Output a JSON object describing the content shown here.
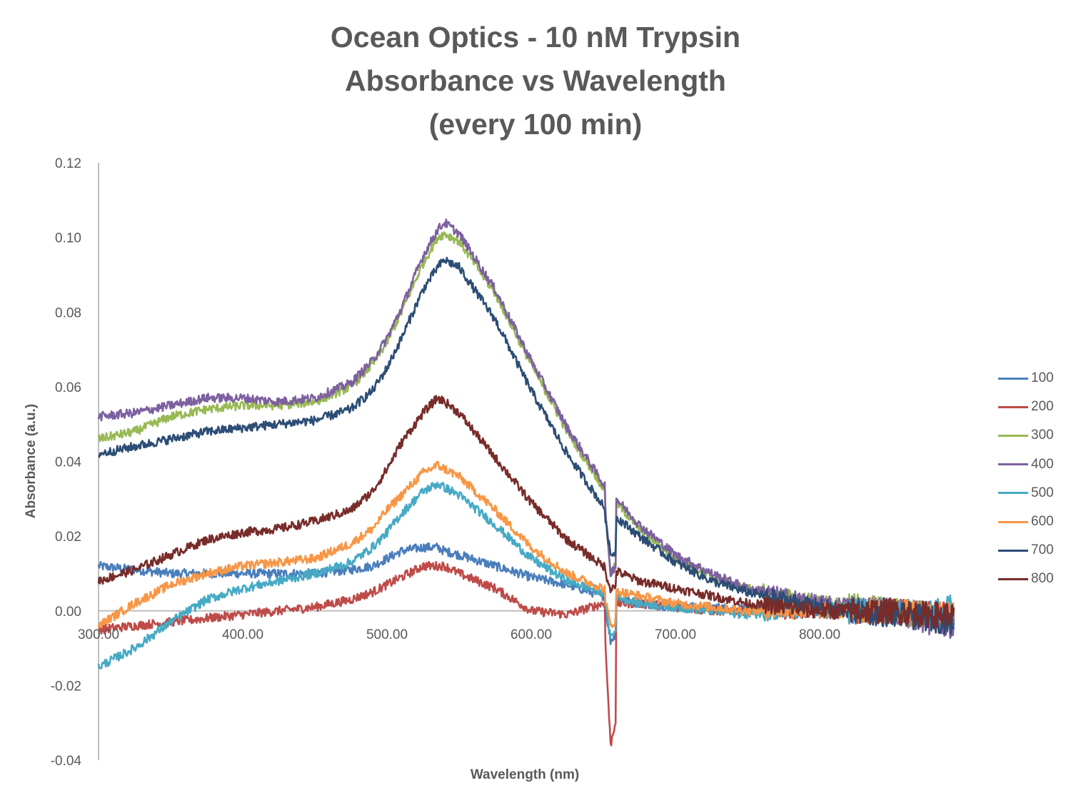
{
  "chart_data": {
    "type": "line",
    "title_lines": [
      "Ocean Optics - 10 nM Trypsin",
      "Absorbance vs Wavelength",
      "(every 100 min)"
    ],
    "xlabel": "Wavelength (nm)",
    "ylabel": "Absorbance (a.u.)",
    "xlim": [
      300,
      893
    ],
    "ylim": [
      -0.04,
      0.12
    ],
    "x_ticks": [
      300,
      400,
      500,
      600,
      700,
      800
    ],
    "x_tick_labels": [
      "300.00",
      "400.00",
      "500.00",
      "600.00",
      "700.00",
      "800.00"
    ],
    "y_ticks": [
      0.12,
      0.1,
      0.08,
      0.06,
      0.04,
      0.02,
      0.0,
      -0.02,
      -0.04
    ],
    "y_tick_labels": [
      "0.12",
      "0.10",
      "0.08",
      "0.06",
      "0.04",
      "0.02",
      "0.00",
      "-0.02",
      "-0.04"
    ],
    "grid": false,
    "legend_position": "right",
    "x": [
      300,
      325,
      350,
      375,
      400,
      425,
      450,
      475,
      490,
      500,
      510,
      525,
      535,
      540,
      550,
      575,
      600,
      625,
      650,
      655,
      675,
      700,
      725,
      750,
      775,
      800,
      825,
      850,
      875,
      893
    ],
    "series": [
      {
        "name": "100",
        "color": "#4a7ebb",
        "values": [
          0.012,
          0.011,
          0.01,
          0.01,
          0.01,
          0.01,
          0.01,
          0.011,
          0.012,
          0.014,
          0.016,
          0.017,
          0.017,
          0.016,
          0.015,
          0.012,
          0.009,
          0.007,
          0.004,
          -0.008,
          0.002,
          0.001,
          0.001,
          0.0005,
          0.0005,
          0.0,
          0.0,
          0.0,
          -0.001,
          -0.001
        ]
      },
      {
        "name": "200",
        "color": "#be4b48",
        "values": [
          -0.005,
          -0.004,
          -0.003,
          -0.002,
          -0.001,
          0.0,
          0.001,
          0.003,
          0.005,
          0.007,
          0.009,
          0.012,
          0.012,
          0.012,
          0.01,
          0.006,
          0.0,
          -0.001,
          0.002,
          -0.036,
          0.002,
          0.001,
          0.0,
          0.0,
          0.0,
          0.0,
          0.0,
          0.0,
          -0.001,
          -0.001
        ]
      },
      {
        "name": "300",
        "color": "#98b954",
        "values": [
          0.046,
          0.048,
          0.052,
          0.054,
          0.055,
          0.055,
          0.056,
          0.06,
          0.066,
          0.072,
          0.08,
          0.093,
          0.1,
          0.101,
          0.099,
          0.085,
          0.066,
          0.048,
          0.033,
          0.01,
          0.022,
          0.014,
          0.009,
          0.006,
          0.004,
          0.002,
          0.001,
          0.0,
          -0.002,
          -0.003
        ]
      },
      {
        "name": "400",
        "color": "#7d60a0",
        "values": [
          0.052,
          0.053,
          0.055,
          0.057,
          0.057,
          0.056,
          0.057,
          0.061,
          0.067,
          0.073,
          0.081,
          0.095,
          0.102,
          0.104,
          0.101,
          0.086,
          0.067,
          0.049,
          0.034,
          0.01,
          0.023,
          0.015,
          0.01,
          0.006,
          0.004,
          0.002,
          0.001,
          0.0,
          -0.003,
          -0.004
        ]
      },
      {
        "name": "500",
        "color": "#46aac5",
        "values": [
          -0.015,
          -0.01,
          -0.003,
          0.003,
          0.006,
          0.008,
          0.01,
          0.013,
          0.017,
          0.021,
          0.026,
          0.032,
          0.034,
          0.033,
          0.031,
          0.023,
          0.014,
          0.008,
          0.005,
          -0.007,
          0.002,
          0.001,
          0.0,
          -0.001,
          0.0,
          0.0,
          0.0,
          0.0,
          -0.001,
          0.002
        ]
      },
      {
        "name": "600",
        "color": "#f79646",
        "values": [
          -0.004,
          0.002,
          0.007,
          0.01,
          0.012,
          0.013,
          0.014,
          0.018,
          0.022,
          0.027,
          0.031,
          0.037,
          0.039,
          0.038,
          0.036,
          0.027,
          0.017,
          0.01,
          0.006,
          -0.004,
          0.004,
          0.002,
          0.001,
          0.0,
          0.0,
          0.0,
          0.0,
          0.0,
          -0.001,
          -0.001
        ]
      },
      {
        "name": "700",
        "color": "#2c4d75",
        "values": [
          0.042,
          0.044,
          0.046,
          0.048,
          0.049,
          0.05,
          0.051,
          0.054,
          0.059,
          0.065,
          0.073,
          0.086,
          0.092,
          0.094,
          0.092,
          0.078,
          0.059,
          0.042,
          0.028,
          0.015,
          0.02,
          0.013,
          0.008,
          0.005,
          0.003,
          0.001,
          0.0,
          -0.001,
          -0.002,
          -0.003
        ]
      },
      {
        "name": "800",
        "color": "#772c2a",
        "values": [
          0.008,
          0.011,
          0.015,
          0.019,
          0.021,
          0.022,
          0.024,
          0.027,
          0.032,
          0.038,
          0.045,
          0.053,
          0.057,
          0.056,
          0.053,
          0.041,
          0.029,
          0.019,
          0.012,
          0.006,
          0.008,
          0.006,
          0.004,
          0.002,
          0.001,
          0.0,
          0.0,
          0.0,
          -0.001,
          -0.001
        ]
      }
    ]
  }
}
